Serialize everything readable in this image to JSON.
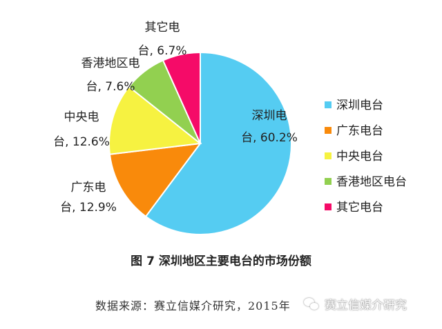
{
  "chart_data": {
    "type": "pie",
    "title": "图 7 深圳地区主要电台的市场份额",
    "source": "数据来源：赛立信媒介研究，2015年",
    "legend_position": "right",
    "slices": [
      {
        "legend": "深圳电台",
        "label_line1": "深圳电",
        "label_line2": "台, 60.2%",
        "value": 60.2,
        "color": "#55CCF2"
      },
      {
        "legend": "广东电台",
        "label_line1": "广东电",
        "label_line2": "台, 12.9%",
        "value": 12.9,
        "color": "#F98A0B"
      },
      {
        "legend": "中央电台",
        "label_line1": "中央电",
        "label_line2": "台, 12.6%",
        "value": 12.6,
        "color": "#F6F241"
      },
      {
        "legend": "香港地区电台",
        "label_line1": "香港地区电",
        "label_line2": "台, 7.6%",
        "value": 7.6,
        "color": "#92D050"
      },
      {
        "legend": "其它电台",
        "label_line1": "其它电",
        "label_line2": "台, 6.7%",
        "value": 6.7,
        "color": "#F50B68"
      }
    ]
  },
  "watermark": {
    "text": "赛立信媒介研究",
    "icon": "wechat-icon"
  }
}
